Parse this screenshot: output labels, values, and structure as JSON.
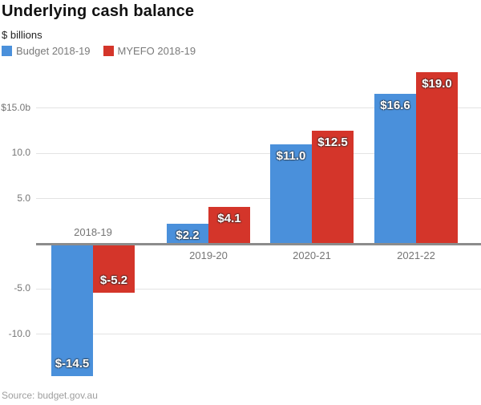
{
  "header": {
    "title": "Underlying cash balance",
    "subtitle": "$ billions"
  },
  "footer": {
    "source": "Source: budget.gov.au"
  },
  "chart_data": {
    "type": "bar",
    "title": "Underlying cash balance",
    "subtitle": "$ billions",
    "unit": "$ billions",
    "categories": [
      "2018-19",
      "2019-20",
      "2020-21",
      "2021-22"
    ],
    "series": [
      {
        "name": "Budget 2018-19",
        "color": "#4a90db",
        "values": [
          -14.5,
          2.2,
          11.0,
          16.6
        ],
        "labels": [
          "$-14.5",
          "$2.2",
          "$11.0",
          "$16.6"
        ]
      },
      {
        "name": "MYEFO 2018-19",
        "color": "#d4352a",
        "values": [
          -5.2,
          4.1,
          12.5,
          19.0
        ],
        "labels": [
          "$-5.2",
          "$4.1",
          "$12.5",
          "$19.0"
        ]
      }
    ],
    "y_ticks": [
      {
        "value": 15,
        "label": "$15.0b"
      },
      {
        "value": 10,
        "label": "10.0"
      },
      {
        "value": 5,
        "label": "5.0"
      },
      {
        "value": -5,
        "label": "-5.0"
      },
      {
        "value": -10,
        "label": "-10.0"
      }
    ],
    "ylim": [
      -16.5,
      20.5
    ],
    "grid": true,
    "grid_color": "#e3e3e3",
    "zero_line_color": "#8c8c8c",
    "axis_text_color": "#757575",
    "legend_position": "top-left",
    "xlabel": "",
    "ylabel": "$ billions"
  }
}
